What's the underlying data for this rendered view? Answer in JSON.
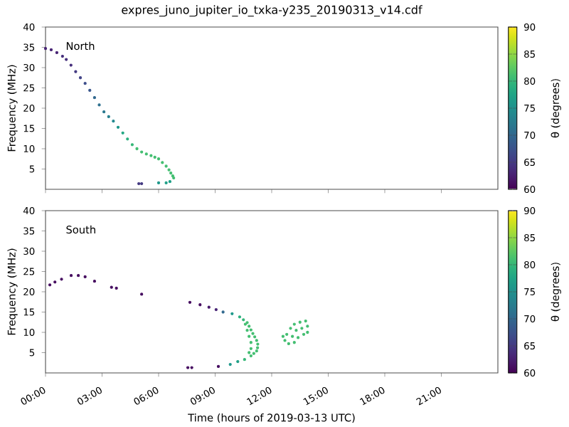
{
  "chart_data": [
    {
      "type": "scatter",
      "title": "expres_juno_jupiter_io_txka-y235_20190313_v14.cdf",
      "ylabel": "Frequency (MHz)",
      "clabel": "θ (degrees)",
      "annotations": [
        "North"
      ],
      "marker": "circle",
      "tick_labels": "y",
      "xlim": [
        0,
        24
      ],
      "ylim": [
        0,
        40
      ],
      "yticks": [
        5,
        10,
        15,
        20,
        25,
        30,
        35,
        40
      ],
      "xticks": [
        {
          "value": 0,
          "label": null
        },
        {
          "value": 3,
          "label": null
        },
        {
          "value": 6,
          "label": null
        },
        {
          "value": 9,
          "label": null
        },
        {
          "value": 12,
          "label": null
        },
        {
          "value": 15,
          "label": null
        },
        {
          "value": 18,
          "label": null
        },
        {
          "value": 21,
          "label": null
        }
      ],
      "clim": [
        60,
        90
      ],
      "cticks": [
        60,
        65,
        70,
        75,
        80,
        85,
        90
      ],
      "x": [
        0.0,
        0.3,
        0.6,
        0.9,
        1.1,
        1.35,
        1.6,
        1.85,
        2.1,
        2.35,
        2.6,
        2.85,
        3.1,
        3.35,
        3.6,
        3.85,
        4.1,
        4.35,
        4.6,
        4.85,
        5.1,
        5.35,
        5.6,
        5.8,
        6.0,
        6.2,
        6.4,
        6.55,
        6.65,
        6.75,
        6.8,
        6.6,
        6.4,
        6.0,
        5.1,
        4.95
      ],
      "values": [
        34.7,
        34.4,
        33.7,
        32.8,
        32,
        30.6,
        29,
        27.5,
        26.1,
        24.4,
        22.6,
        20.8,
        19.1,
        17.9,
        16.8,
        15.3,
        13.9,
        12.4,
        11,
        10,
        9.2,
        8.7,
        8.3,
        7.9,
        7.5,
        6.6,
        5.7,
        4.8,
        4,
        3.3,
        2.8,
        1.9,
        1.6,
        1.6,
        1.4,
        1.4
      ],
      "cvalues": [
        63,
        63,
        63,
        64,
        64,
        64,
        65,
        66,
        67,
        68,
        70,
        71,
        72,
        73,
        74,
        76,
        78,
        79,
        80,
        81,
        81,
        81,
        81,
        81,
        81,
        81,
        81,
        81,
        81,
        81,
        81,
        77,
        77,
        76,
        65,
        65
      ]
    },
    {
      "type": "scatter",
      "xlabel": "Time (hours of 2019-03-13 UTC)",
      "ylabel": "Frequency (MHz)",
      "clabel": "θ (degrees)",
      "annotations": [
        "South"
      ],
      "marker": "circle",
      "xlim": [
        0,
        24
      ],
      "ylim": [
        0,
        40
      ],
      "yticks": [
        5,
        10,
        15,
        20,
        25,
        30,
        35,
        40
      ],
      "xticks": [
        {
          "value": 0,
          "label": "00:00"
        },
        {
          "value": 3,
          "label": "03:00"
        },
        {
          "value": 6,
          "label": "06:00"
        },
        {
          "value": 9,
          "label": "09:00"
        },
        {
          "value": 12,
          "label": "12:00"
        },
        {
          "value": 15,
          "label": "15:00"
        },
        {
          "value": 18,
          "label": "18:00"
        },
        {
          "value": 21,
          "label": "21:00"
        }
      ],
      "clim": [
        60,
        90
      ],
      "cticks": [
        60,
        65,
        70,
        75,
        80,
        85,
        90
      ],
      "x": [
        0.23,
        0.5,
        0.85,
        1.36,
        1.74,
        2.1,
        2.6,
        3.5,
        3.76,
        5.1,
        7.66,
        8.2,
        8.67,
        9.05,
        9.42,
        9.9,
        10.3,
        10.5,
        10.7,
        10.8,
        10.9,
        11.0,
        11.1,
        11.2,
        11.26,
        11.25,
        11.2,
        11.05,
        10.9,
        10.56,
        10.2,
        9.8,
        9.17,
        7.76,
        7.55,
        10.6,
        10.7,
        10.8,
        10.9,
        10.9,
        10.8,
        12.7,
        12.9,
        13.2,
        12.8,
        13.1,
        13.4,
        13.7,
        13.0,
        13.3,
        13.6,
        13.9,
        13.5,
        13.8,
        13.2,
        12.6,
        13.9
      ],
      "values": [
        21.7,
        22.4,
        23.1,
        24,
        24,
        23.7,
        22.6,
        21.1,
        20.9,
        19.4,
        17.4,
        16.8,
        16.2,
        15.6,
        15,
        14.6,
        13.8,
        13.1,
        12.4,
        11.5,
        10.6,
        9.7,
        8.9,
        8,
        7.1,
        6.2,
        5.4,
        4.8,
        4.2,
        3.3,
        2.8,
        2.1,
        1.6,
        1.3,
        1.3,
        12,
        10.5,
        9,
        7.5,
        6,
        5,
        8,
        7.2,
        7.5,
        9.5,
        9,
        8.7,
        9.5,
        11,
        10.5,
        11,
        11.5,
        12.5,
        12.8,
        12,
        9,
        10
      ],
      "cvalues": [
        61,
        61,
        61,
        61,
        61,
        61,
        61,
        61,
        61,
        61,
        61,
        61,
        62,
        63,
        70,
        76,
        79,
        80,
        81,
        81,
        81,
        81,
        81,
        81,
        81,
        81,
        81,
        81,
        81,
        80,
        77,
        76,
        61,
        61,
        61,
        81,
        81,
        81,
        81,
        81,
        81,
        81,
        81,
        81,
        81,
        81,
        81,
        81,
        81,
        81,
        81,
        81,
        81,
        81,
        81,
        81,
        81
      ]
    }
  ]
}
